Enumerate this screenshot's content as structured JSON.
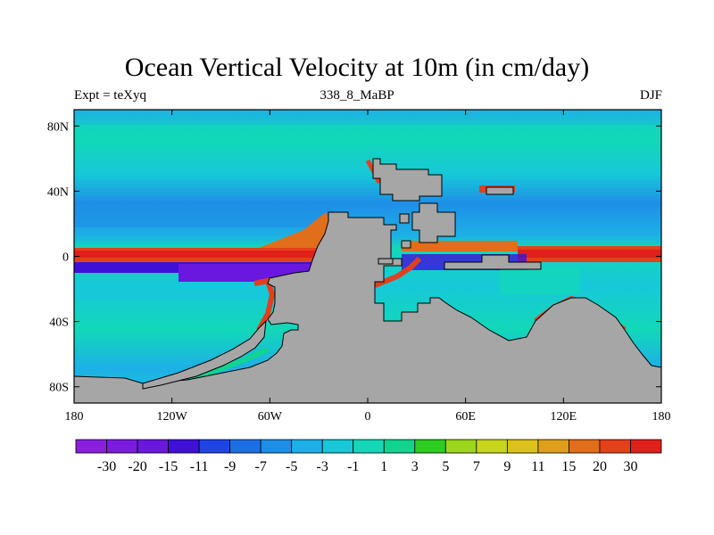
{
  "chart_data": {
    "type": "heatmap",
    "title": "Ocean Vertical Velocity at 10m (in cm/day)",
    "left_label": "Expt = teXyq",
    "center_label": "338_8_MaBP",
    "right_label": "DJF",
    "x_ticks": [
      {
        "value": -180,
        "label": "180"
      },
      {
        "value": -120,
        "label": "120W"
      },
      {
        "value": -60,
        "label": "60W"
      },
      {
        "value": 0,
        "label": "0"
      },
      {
        "value": 60,
        "label": "60E"
      },
      {
        "value": 120,
        "label": "120E"
      },
      {
        "value": 180,
        "label": "180"
      }
    ],
    "y_ticks": [
      {
        "value": 80,
        "label": "80N"
      },
      {
        "value": 40,
        "label": "40N"
      },
      {
        "value": 0,
        "label": "0"
      },
      {
        "value": -40,
        "label": "40S"
      },
      {
        "value": -80,
        "label": "80S"
      }
    ],
    "xlim": [
      -180,
      180
    ],
    "ylim": [
      -90,
      90
    ],
    "land_color": "#a6a6a6",
    "colorbar": {
      "colors": [
        "#8a1fe0",
        "#7a1be0",
        "#6a17e0",
        "#3e10d8",
        "#1f44e6",
        "#1d6fe6",
        "#1e8fe6",
        "#1db0e6",
        "#17c8d8",
        "#12d8b8",
        "#10d490",
        "#2ccc20",
        "#9cd61a",
        "#c8d61a",
        "#dcc21a",
        "#dea01a",
        "#e06e1a",
        "#e4401a",
        "#e0201a"
      ],
      "labels": [
        "-30",
        "-20",
        "-15",
        "-11",
        "-9",
        "-7",
        "-5",
        "-3",
        "-1",
        "1",
        "3",
        "5",
        "7",
        "9",
        "11",
        "15",
        "20",
        "30"
      ]
    },
    "features": {
      "equatorial_upwelling_band": {
        "lat": 0,
        "lon_range": [
          -180,
          180
        ],
        "value": 30
      },
      "south_equatorial_downwelling": {
        "lat": -8,
        "lon_range": [
          -150,
          -40
        ],
        "value": -25
      },
      "background_tropics": {
        "value": 3
      },
      "background_midlat": {
        "value": -3
      }
    }
  }
}
